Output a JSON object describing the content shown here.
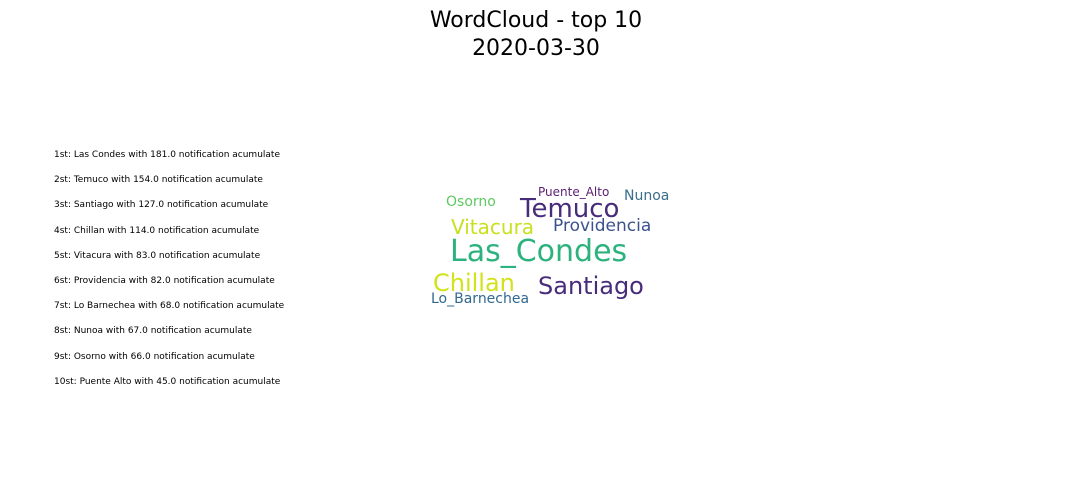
{
  "title": "WordCloud - top 10",
  "subtitle": "2020-03-30",
  "ranking": [
    "1st: Las Condes with 181.0 notification acumulate",
    "2st: Temuco with 154.0 notification acumulate",
    "3st: Santiago with 127.0 notification acumulate",
    "4st: Chillan with 114.0 notification acumulate",
    "5st: Vitacura with 83.0 notification acumulate",
    "6st: Providencia with 82.0 notification acumulate",
    "7st: Lo Barnechea with 68.0 notification acumulate",
    "8st: Nunoa with 67.0 notification acumulate",
    "9st: Osorno with 66.0 notification acumulate",
    "10st: Puente Alto with 45.0 notification acumulate"
  ],
  "chart_data": {
    "type": "wordcloud",
    "title": "WordCloud - top 10",
    "subtitle": "2020-03-30",
    "words": [
      {
        "text": "Las_Condes",
        "value": 181.0,
        "color": "#2db27d"
      },
      {
        "text": "Temuco",
        "value": 154.0,
        "color": "#472c7a"
      },
      {
        "text": "Santiago",
        "value": 127.0,
        "color": "#472c7a"
      },
      {
        "text": "Chillan",
        "value": 114.0,
        "color": "#d2e21b"
      },
      {
        "text": "Vitacura",
        "value": 83.0,
        "color": "#c8e020"
      },
      {
        "text": "Providencia",
        "value": 82.0,
        "color": "#3b528b"
      },
      {
        "text": "Lo_Barnechea",
        "value": 68.0,
        "color": "#31688e"
      },
      {
        "text": "Nunoa",
        "value": 67.0,
        "color": "#3b6e8c"
      },
      {
        "text": "Osorno",
        "value": 66.0,
        "color": "#5ec962"
      },
      {
        "text": "Puente_Alto",
        "value": 45.0,
        "color": "#5b1f73"
      }
    ]
  }
}
